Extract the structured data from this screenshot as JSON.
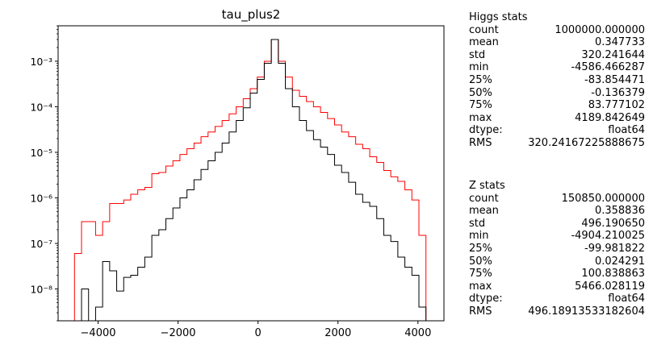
{
  "chart_data": {
    "type": "histogram",
    "title": "tau_plus2",
    "xlabel": "",
    "ylabel": "",
    "xlim": [
      -5000,
      4650
    ],
    "ylim": [
      2e-09,
      0.006
    ],
    "yscale": "log",
    "grid": false,
    "xticks": [
      -4000,
      -2000,
      0,
      2000,
      4000
    ],
    "xtick_labels": [
      "−4000",
      "−2000",
      "0",
      "2000",
      "4000"
    ],
    "yticks": [
      1e-08,
      1e-07,
      1e-06,
      1e-05,
      0.0001,
      0.001
    ],
    "ytick_labels": [
      "10⁻⁸",
      "10⁻⁷",
      "10⁻⁶",
      "10⁻⁵",
      "10⁻⁴",
      "10⁻³"
    ],
    "bins": {
      "start": -4590,
      "width": 175.8,
      "count": 50
    },
    "series": [
      {
        "color": "#ff0000",
        "values": [
          6e-08,
          3e-07,
          3e-07,
          1.5e-07,
          3e-07,
          7.5e-07,
          7.5e-07,
          9e-07,
          1.2e-06,
          1.5e-06,
          1.7e-06,
          3.4e-06,
          3.6e-06,
          5e-06,
          6.5e-06,
          9e-06,
          1.2e-05,
          1.6e-05,
          2.2e-05,
          2.8e-05,
          3.7e-05,
          5e-05,
          7e-05,
          0.0001,
          0.00015,
          0.00025,
          0.00045,
          0.001,
          0.003,
          0.001,
          0.00045,
          0.00023,
          0.00017,
          0.00013,
          0.0001,
          7.5e-05,
          5.5e-05,
          4e-05,
          2.8e-05,
          2.2e-05,
          1.5e-05,
          1.2e-05,
          8e-06,
          6e-06,
          4e-06,
          2.9e-06,
          2.3e-06,
          1.5e-06,
          9e-07,
          1.5e-07
        ]
      },
      {
        "color": "#000000",
        "values": [
          null,
          1e-08,
          2e-09,
          4e-09,
          4e-08,
          2.5e-08,
          9e-09,
          1.8e-08,
          2e-08,
          3e-08,
          5e-08,
          1.5e-07,
          2e-07,
          3.5e-07,
          6e-07,
          1e-06,
          1.5e-06,
          2.5e-06,
          4.2e-06,
          6.5e-06,
          1e-05,
          1.6e-05,
          2.8e-05,
          5e-05,
          9.5e-05,
          0.0002,
          0.0004,
          0.0009,
          0.003,
          0.0009,
          0.00025,
          0.0001,
          5e-05,
          3e-05,
          1.9e-05,
          1.3e-05,
          9e-06,
          5.2e-06,
          3.6e-06,
          2.2e-06,
          1.2e-06,
          8e-07,
          6.5e-07,
          3.5e-07,
          1.5e-07,
          1.1e-07,
          5e-08,
          3e-08,
          2e-08,
          4e-09
        ]
      }
    ]
  },
  "stats": {
    "higgs": {
      "title": "Higgs stats",
      "rows": [
        [
          "count",
          "1000000.000000"
        ],
        [
          "mean",
          "0.347733"
        ],
        [
          "std",
          "320.241644"
        ],
        [
          "min",
          "-4586.466287"
        ],
        [
          "25%",
          "-83.854471"
        ],
        [
          "50%",
          "-0.136379"
        ],
        [
          "75%",
          "83.777102"
        ],
        [
          "max",
          "4189.842649"
        ],
        [
          "dtype:",
          "float64"
        ],
        [
          "RMS",
          "320.24167225888675"
        ]
      ]
    },
    "z": {
      "title": "Z stats",
      "rows": [
        [
          "count",
          "150850.000000"
        ],
        [
          "mean",
          "0.358836"
        ],
        [
          "std",
          "496.190650"
        ],
        [
          "min",
          "-4904.210025"
        ],
        [
          "25%",
          "-99.981822"
        ],
        [
          "50%",
          "0.024291"
        ],
        [
          "75%",
          "100.838863"
        ],
        [
          "max",
          "5466.028119"
        ],
        [
          "dtype:",
          "float64"
        ],
        [
          "RMS",
          "496.18913533182604"
        ]
      ]
    }
  }
}
